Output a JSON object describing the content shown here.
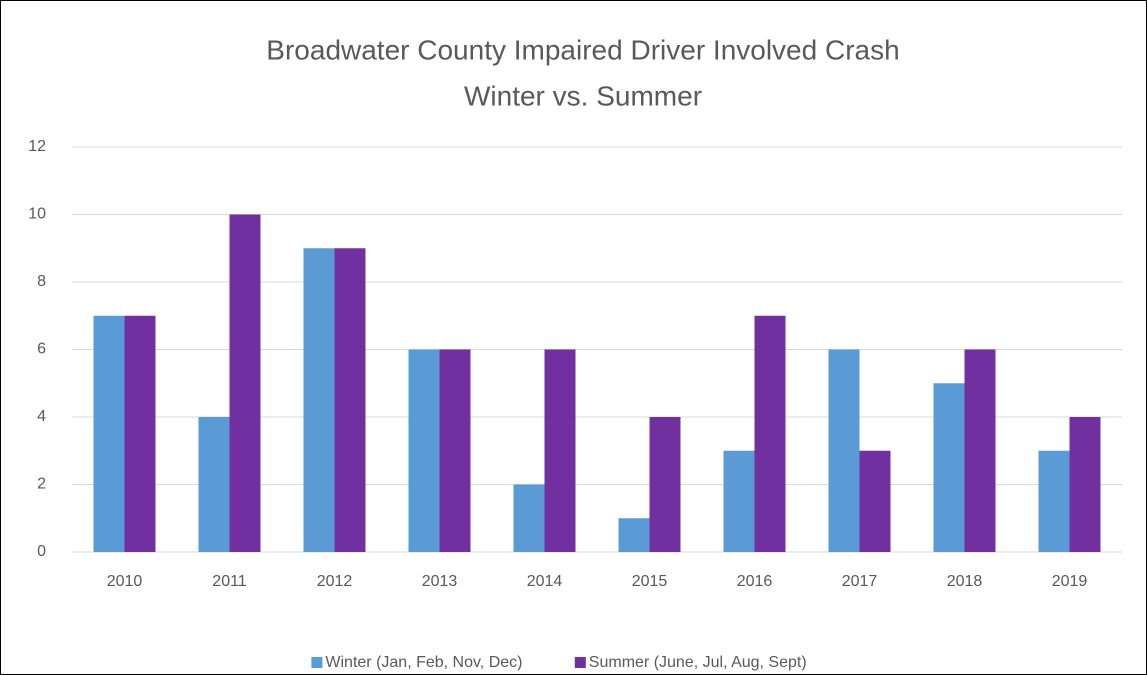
{
  "chart_data": {
    "type": "bar",
    "title": "Broadwater County Impaired Driver Involved Crash",
    "subtitle": "Winter vs. Summer",
    "categories": [
      "2010",
      "2011",
      "2012",
      "2013",
      "2014",
      "2015",
      "2016",
      "2017",
      "2018",
      "2019"
    ],
    "series": [
      {
        "name": "Winter (Jan, Feb, Nov, Dec)",
        "color": "#5b9bd5",
        "values": [
          7,
          4,
          9,
          6,
          2,
          1,
          3,
          6,
          5,
          3
        ]
      },
      {
        "name": "Summer (June, Jul, Aug, Sept)",
        "color": "#7030a0",
        "values": [
          7,
          10,
          9,
          6,
          6,
          4,
          7,
          3,
          6,
          4
        ]
      }
    ],
    "ylim": [
      0,
      12
    ],
    "yticks": [
      0,
      2,
      4,
      6,
      8,
      10,
      12
    ],
    "grid": true,
    "legend": "bottom"
  }
}
